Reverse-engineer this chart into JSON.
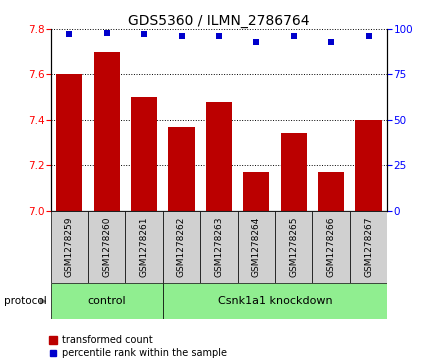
{
  "title": "GDS5360 / ILMN_2786764",
  "samples": [
    "GSM1278259",
    "GSM1278260",
    "GSM1278261",
    "GSM1278262",
    "GSM1278263",
    "GSM1278264",
    "GSM1278265",
    "GSM1278266",
    "GSM1278267"
  ],
  "bar_values": [
    7.6,
    7.7,
    7.5,
    7.37,
    7.48,
    7.17,
    7.34,
    7.17,
    7.4
  ],
  "percentile_values": [
    97,
    98,
    97,
    96,
    96,
    93,
    96,
    93,
    96
  ],
  "ylim_left": [
    7.0,
    7.8
  ],
  "ylim_right": [
    0,
    100
  ],
  "yticks_left": [
    7.0,
    7.2,
    7.4,
    7.6,
    7.8
  ],
  "yticks_right": [
    0,
    25,
    50,
    75,
    100
  ],
  "bar_color": "#bb0000",
  "dot_color": "#0000cc",
  "bar_width": 0.7,
  "ctrl_count": 3,
  "kd_count": 6,
  "control_label": "control",
  "knockdown_label": "Csnk1a1 knockdown",
  "protocol_label": "protocol",
  "legend_bar_label": "transformed count",
  "legend_dot_label": "percentile rank within the sample",
  "group_color": "#90ee90",
  "sample_box_color": "#d0d0d0",
  "title_fontsize": 10,
  "tick_fontsize": 7.5,
  "sample_fontsize": 6.5,
  "group_fontsize": 8,
  "legend_fontsize": 7
}
